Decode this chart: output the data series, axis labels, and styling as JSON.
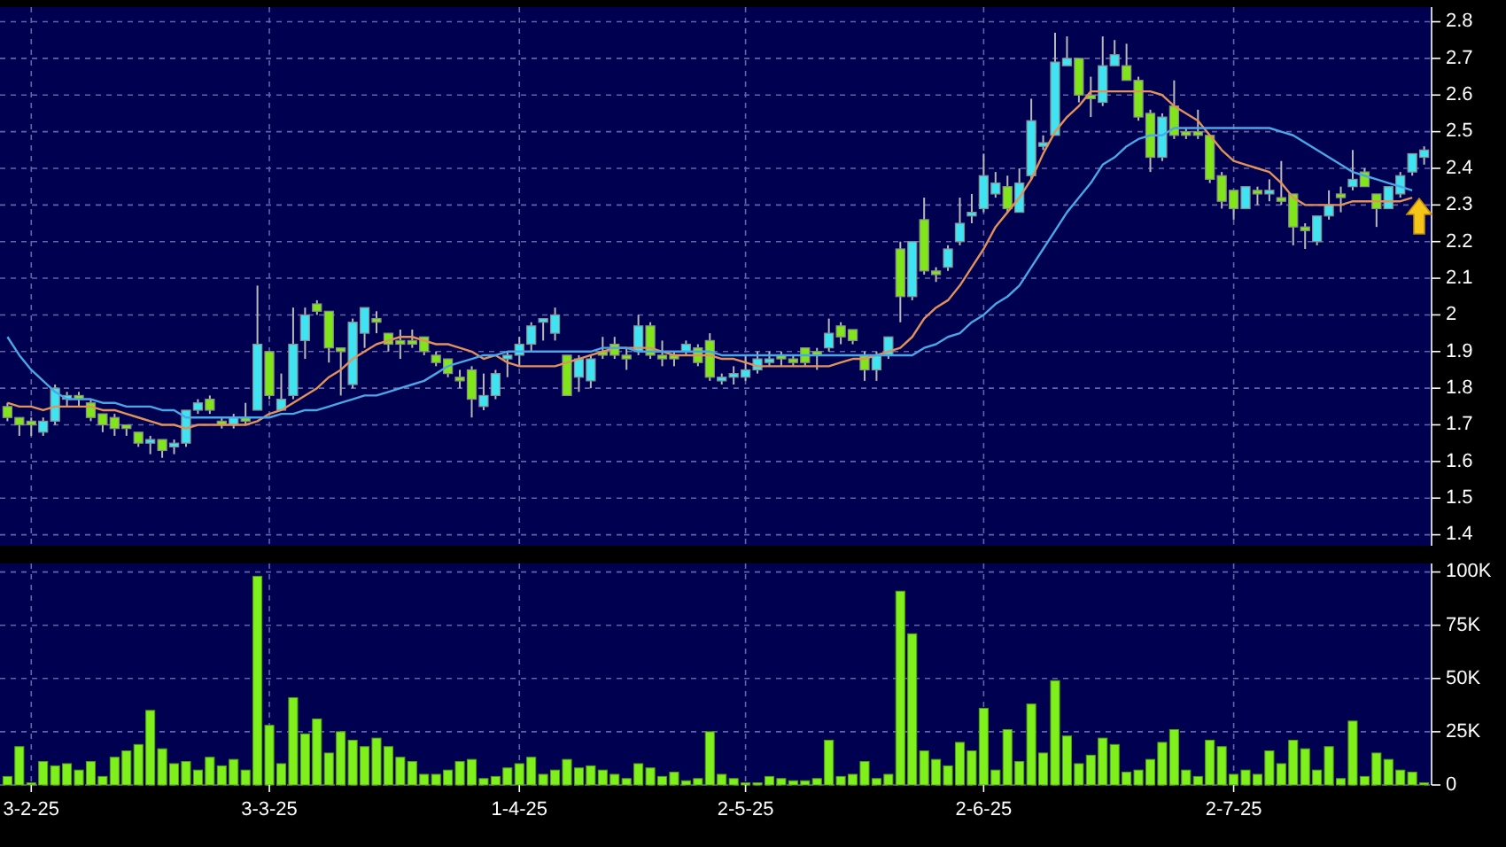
{
  "chart_data": [
    {
      "type": "candlestick",
      "colors": [
        "#80e61a",
        "#80e61a",
        "#80e61a",
        "#3fe3f2",
        "#3fe3f2",
        "#3fe3f2",
        "#80e61a",
        "#80e61a",
        "#80e61a",
        "#80e61a",
        "#80e61a",
        "#80e61a",
        "#3fe3f2",
        "#80e61a",
        "#3fe3f2",
        "#3fe3f2",
        "#3fe3f2",
        "#80e61a",
        "#80e61a",
        "#3fe3f2",
        "#80e61a",
        "#3fe3f2",
        "#80e61a",
        "#3fe3f2",
        "#3fe3f2",
        "#3fe3f2",
        "#80e61a",
        "#80e61a",
        "#80e61a",
        "#3fe3f2",
        "#3fe3f2",
        "#80e61a",
        "#80e61a",
        "#80e61a",
        "#80e61a",
        "#80e61a",
        "#80e61a",
        "#80e61a",
        "#80e61a",
        "#80e61a",
        "#3fe3f2",
        "#3fe3f2",
        "#3fe3f2",
        "#3fe3f2",
        "#3fe3f2",
        "#3fe3f2",
        "#3fe3f2",
        "#80e61a",
        "#3fe3f2",
        "#3fe3f2",
        "#80e61a",
        "#80e61a",
        "#80e61a",
        "#3fe3f2",
        "#80e61a",
        "#80e61a",
        "#80e61a",
        "#3fe3f2",
        "#80e61a",
        "#80e61a",
        "#3fe3f2",
        "#3fe3f2",
        "#3fe3f2",
        "#3fe3f2",
        "#3fe3f2",
        "#80e61a",
        "#80e61a",
        "#80e61a",
        "#80e61a",
        "#3fe3f2",
        "#80e61a",
        "#80e61a",
        "#80e61a",
        "#3fe3f2",
        "#3fe3f2",
        "#80e61a",
        "#3fe3f2",
        "#80e61a",
        "#80e61a",
        "#3fe3f2",
        "#3fe3f2",
        "#3fe3f2",
        "#3fe3f2",
        "#3fe3f2",
        "#80e61a",
        "#3fe3f2",
        "#3fe3f2",
        "#3fe3f2",
        "#3fe3f2",
        "#3fe3f2",
        "#80e61a",
        "#80e61a",
        "#3fe3f2",
        "#3fe3f2",
        "#80e61a",
        "#80e61a",
        "#80e61a",
        "#3fe3f2",
        "#80e61a",
        "#80e61a",
        "#80e61a",
        "#80e61a",
        "#80e61a",
        "#80e61a",
        "#3fe3f2",
        "#80e61a",
        "#3fe3f2",
        "#80e61a",
        "#80e61a",
        "#80e61a",
        "#3fe3f2",
        "#3fe3f2",
        "#80e61a",
        "#3fe3f2",
        "#80e61a",
        "#80e61a",
        "#3fe3f2",
        "#3fe3f2",
        "#3fe3f2",
        "#3fe3f2"
      ],
      "ohlc": [
        [
          1.75,
          1.76,
          1.71,
          1.72
        ],
        [
          1.72,
          1.72,
          1.67,
          1.7
        ],
        [
          1.71,
          1.72,
          1.67,
          1.7
        ],
        [
          1.68,
          1.72,
          1.67,
          1.71
        ],
        [
          1.71,
          1.81,
          1.7,
          1.8
        ],
        [
          1.77,
          1.79,
          1.75,
          1.78
        ],
        [
          1.78,
          1.79,
          1.75,
          1.77
        ],
        [
          1.76,
          1.77,
          1.71,
          1.72
        ],
        [
          1.73,
          1.73,
          1.68,
          1.7
        ],
        [
          1.72,
          1.73,
          1.67,
          1.69
        ],
        [
          1.7,
          1.7,
          1.67,
          1.69
        ],
        [
          1.68,
          1.68,
          1.64,
          1.65
        ],
        [
          1.65,
          1.67,
          1.62,
          1.66
        ],
        [
          1.66,
          1.66,
          1.61,
          1.63
        ],
        [
          1.64,
          1.66,
          1.62,
          1.65
        ],
        [
          1.65,
          1.74,
          1.64,
          1.74
        ],
        [
          1.74,
          1.77,
          1.73,
          1.76
        ],
        [
          1.77,
          1.78,
          1.73,
          1.74
        ],
        [
          1.71,
          1.72,
          1.69,
          1.7
        ],
        [
          1.7,
          1.73,
          1.69,
          1.72
        ],
        [
          1.72,
          1.76,
          1.7,
          1.71
        ],
        [
          1.74,
          2.08,
          1.74,
          1.92
        ],
        [
          1.9,
          1.9,
          1.77,
          1.78
        ],
        [
          1.74,
          1.84,
          1.74,
          1.77
        ],
        [
          1.78,
          2.02,
          1.77,
          1.92
        ],
        [
          1.93,
          2.02,
          1.88,
          2.0
        ],
        [
          2.03,
          2.04,
          2.0,
          2.01
        ],
        [
          2.01,
          2.01,
          1.87,
          1.91
        ],
        [
          1.91,
          1.91,
          1.78,
          1.9
        ],
        [
          1.81,
          1.99,
          1.8,
          1.98
        ],
        [
          1.95,
          2.02,
          1.91,
          2.02
        ],
        [
          1.99,
          2.01,
          1.95,
          1.98
        ],
        [
          1.95,
          1.95,
          1.9,
          1.92
        ],
        [
          1.93,
          1.96,
          1.88,
          1.92
        ],
        [
          1.93,
          1.96,
          1.91,
          1.92
        ],
        [
          1.94,
          1.94,
          1.89,
          1.9
        ],
        [
          1.89,
          1.9,
          1.86,
          1.87
        ],
        [
          1.88,
          1.88,
          1.83,
          1.84
        ],
        [
          1.83,
          1.85,
          1.8,
          1.82
        ],
        [
          1.85,
          1.86,
          1.72,
          1.77
        ],
        [
          1.75,
          1.84,
          1.74,
          1.78
        ],
        [
          1.78,
          1.85,
          1.77,
          1.84
        ],
        [
          1.88,
          1.9,
          1.83,
          1.89
        ],
        [
          1.89,
          1.94,
          1.86,
          1.92
        ],
        [
          1.92,
          1.98,
          1.9,
          1.97
        ],
        [
          1.98,
          1.99,
          1.93,
          1.99
        ],
        [
          1.95,
          2.02,
          1.93,
          2.0
        ],
        [
          1.89,
          1.89,
          1.78,
          1.78
        ],
        [
          1.83,
          1.89,
          1.79,
          1.88
        ],
        [
          1.82,
          1.89,
          1.8,
          1.88
        ],
        [
          1.9,
          1.94,
          1.88,
          1.89
        ],
        [
          1.92,
          1.94,
          1.88,
          1.89
        ],
        [
          1.89,
          1.91,
          1.85,
          1.88
        ],
        [
          1.9,
          2.0,
          1.89,
          1.97
        ],
        [
          1.97,
          1.98,
          1.88,
          1.89
        ],
        [
          1.89,
          1.93,
          1.86,
          1.88
        ],
        [
          1.89,
          1.9,
          1.86,
          1.88
        ],
        [
          1.9,
          1.93,
          1.89,
          1.92
        ],
        [
          1.91,
          1.92,
          1.86,
          1.87
        ],
        [
          1.93,
          1.95,
          1.82,
          1.83
        ],
        [
          1.82,
          1.84,
          1.81,
          1.83
        ],
        [
          1.83,
          1.86,
          1.81,
          1.84
        ],
        [
          1.83,
          1.89,
          1.82,
          1.85
        ],
        [
          1.85,
          1.9,
          1.84,
          1.88
        ],
        [
          1.87,
          1.9,
          1.86,
          1.88
        ],
        [
          1.89,
          1.9,
          1.86,
          1.88
        ],
        [
          1.88,
          1.89,
          1.86,
          1.87
        ],
        [
          1.91,
          1.91,
          1.86,
          1.87
        ],
        [
          1.9,
          1.91,
          1.85,
          1.89
        ],
        [
          1.91,
          1.99,
          1.9,
          1.95
        ],
        [
          1.97,
          1.98,
          1.92,
          1.94
        ],
        [
          1.96,
          1.96,
          1.92,
          1.93
        ],
        [
          1.89,
          1.9,
          1.82,
          1.85
        ],
        [
          1.85,
          1.9,
          1.82,
          1.89
        ],
        [
          1.89,
          1.94,
          1.88,
          1.94
        ],
        [
          2.18,
          2.2,
          1.98,
          2.05
        ],
        [
          2.05,
          2.2,
          2.04,
          2.2
        ],
        [
          2.26,
          2.32,
          2.11,
          2.12
        ],
        [
          2.12,
          2.13,
          2.09,
          2.11
        ],
        [
          2.13,
          2.19,
          2.12,
          2.18
        ],
        [
          2.2,
          2.32,
          2.19,
          2.25
        ],
        [
          2.27,
          2.33,
          2.25,
          2.28
        ],
        [
          2.29,
          2.44,
          2.28,
          2.38
        ],
        [
          2.33,
          2.39,
          2.32,
          2.36
        ],
        [
          2.35,
          2.38,
          2.28,
          2.29
        ],
        [
          2.28,
          2.4,
          2.28,
          2.36
        ],
        [
          2.38,
          2.59,
          2.37,
          2.53
        ],
        [
          2.46,
          2.49,
          2.45,
          2.47
        ],
        [
          2.49,
          2.77,
          2.49,
          2.69
        ],
        [
          2.68,
          2.76,
          2.68,
          2.7
        ],
        [
          2.7,
          2.7,
          2.58,
          2.6
        ],
        [
          2.6,
          2.65,
          2.54,
          2.59
        ],
        [
          2.58,
          2.76,
          2.57,
          2.68
        ],
        [
          2.68,
          2.75,
          2.68,
          2.71
        ],
        [
          2.68,
          2.74,
          2.64,
          2.64
        ],
        [
          2.64,
          2.65,
          2.53,
          2.54
        ],
        [
          2.55,
          2.56,
          2.39,
          2.43
        ],
        [
          2.43,
          2.55,
          2.42,
          2.54
        ],
        [
          2.57,
          2.64,
          2.48,
          2.49
        ],
        [
          2.5,
          2.51,
          2.48,
          2.49
        ],
        [
          2.5,
          2.56,
          2.48,
          2.49
        ],
        [
          2.49,
          2.49,
          2.36,
          2.37
        ],
        [
          2.38,
          2.39,
          2.29,
          2.31
        ],
        [
          2.34,
          2.34,
          2.26,
          2.29
        ],
        [
          2.29,
          2.35,
          2.29,
          2.35
        ],
        [
          2.34,
          2.35,
          2.3,
          2.33
        ],
        [
          2.33,
          2.37,
          2.31,
          2.34
        ],
        [
          2.32,
          2.42,
          2.3,
          2.31
        ],
        [
          2.33,
          2.33,
          2.19,
          2.24
        ],
        [
          2.24,
          2.25,
          2.18,
          2.23
        ],
        [
          2.2,
          2.27,
          2.19,
          2.27
        ],
        [
          2.27,
          2.34,
          2.26,
          2.3
        ],
        [
          2.33,
          2.35,
          2.28,
          2.32
        ],
        [
          2.35,
          2.45,
          2.34,
          2.37
        ],
        [
          2.39,
          2.4,
          2.35,
          2.35
        ],
        [
          2.33,
          2.33,
          2.24,
          2.29
        ],
        [
          2.29,
          2.35,
          2.29,
          2.35
        ],
        [
          2.33,
          2.39,
          2.32,
          2.38
        ],
        [
          2.39,
          2.44,
          2.38,
          2.44
        ],
        [
          2.43,
          2.46,
          2.41,
          2.45
        ]
      ],
      "series": [
        {
          "type": "line",
          "color": "#e0925a",
          "values": [
            1.76,
            1.75,
            1.75,
            1.74,
            1.75,
            1.75,
            1.75,
            1.75,
            1.74,
            1.74,
            1.73,
            1.72,
            1.71,
            1.7,
            1.7,
            1.69,
            1.7,
            1.7,
            1.7,
            1.7,
            1.7,
            1.71,
            1.73,
            1.74,
            1.76,
            1.78,
            1.8,
            1.83,
            1.85,
            1.88,
            1.9,
            1.92,
            1.93,
            1.94,
            1.94,
            1.93,
            1.92,
            1.92,
            1.91,
            1.9,
            1.88,
            1.89,
            1.87,
            1.86,
            1.86,
            1.86,
            1.86,
            1.87,
            1.88,
            1.89,
            1.9,
            1.91,
            1.91,
            1.91,
            1.91,
            1.9,
            1.89,
            1.89,
            1.89,
            1.89,
            1.88,
            1.88,
            1.87,
            1.86,
            1.86,
            1.86,
            1.86,
            1.86,
            1.86,
            1.86,
            1.87,
            1.88,
            1.88,
            1.89,
            1.9,
            1.91,
            1.94,
            1.99,
            2.02,
            2.04,
            2.08,
            2.13,
            2.18,
            2.24,
            2.28,
            2.32,
            2.37,
            2.44,
            2.5,
            2.54,
            2.57,
            2.61,
            2.61,
            2.61,
            2.61,
            2.61,
            2.61,
            2.6,
            2.57,
            2.55,
            2.53,
            2.49,
            2.45,
            2.42,
            2.41,
            2.4,
            2.39,
            2.36,
            2.32,
            2.3,
            2.3,
            2.3,
            2.3,
            2.31,
            2.31,
            2.31,
            2.31,
            2.31,
            2.32,
            null
          ]
        },
        {
          "type": "line",
          "color": "#4aa6e6",
          "values": [
            1.94,
            1.89,
            1.85,
            1.82,
            1.79,
            1.77,
            1.77,
            1.77,
            1.76,
            1.76,
            1.75,
            1.75,
            1.75,
            1.74,
            1.74,
            1.72,
            1.72,
            1.72,
            1.72,
            1.72,
            1.72,
            1.72,
            1.72,
            1.73,
            1.73,
            1.74,
            1.74,
            1.75,
            1.76,
            1.77,
            1.78,
            1.78,
            1.79,
            1.8,
            1.81,
            1.82,
            1.84,
            1.86,
            1.87,
            1.88,
            1.89,
            1.89,
            1.9,
            1.9,
            1.9,
            1.9,
            1.9,
            1.9,
            1.9,
            1.9,
            1.91,
            1.91,
            1.91,
            1.9,
            1.9,
            1.9,
            1.9,
            1.9,
            1.9,
            1.9,
            1.89,
            1.89,
            1.89,
            1.89,
            1.89,
            1.89,
            1.89,
            1.89,
            1.89,
            1.89,
            1.89,
            1.89,
            1.89,
            1.89,
            1.89,
            1.89,
            1.89,
            1.91,
            1.92,
            1.94,
            1.95,
            1.98,
            2.0,
            2.03,
            2.05,
            2.08,
            2.13,
            2.18,
            2.23,
            2.28,
            2.32,
            2.36,
            2.41,
            2.43,
            2.46,
            2.48,
            2.49,
            2.49,
            2.51,
            2.51,
            2.51,
            2.51,
            2.51,
            2.51,
            2.51,
            2.51,
            2.51,
            2.5,
            2.49,
            2.47,
            2.45,
            2.43,
            2.41,
            2.39,
            2.38,
            2.37,
            2.36,
            2.35,
            2.34,
            null
          ]
        }
      ],
      "ylim": [
        1.37,
        2.84
      ],
      "yticks": [
        1.4,
        1.5,
        1.6,
        1.7,
        1.8,
        1.9,
        2,
        2.1,
        2.2,
        2.3,
        2.4,
        2.5,
        2.6,
        2.7,
        2.8
      ],
      "grid": true,
      "tick_labels": "y"
    },
    {
      "type": "bar",
      "categories": [
        null,
        null,
        "3-2-25",
        null,
        null,
        null,
        null,
        null,
        null,
        null,
        null,
        null,
        null,
        null,
        null,
        null,
        null,
        null,
        null,
        null,
        null,
        null,
        "3-3-25",
        null,
        null,
        null,
        null,
        null,
        null,
        null,
        null,
        null,
        null,
        null,
        null,
        null,
        null,
        null,
        null,
        null,
        null,
        null,
        null,
        "1-4-25",
        null,
        null,
        null,
        null,
        null,
        null,
        null,
        null,
        null,
        null,
        null,
        null,
        null,
        null,
        null,
        null,
        null,
        null,
        "2-5-25",
        null,
        null,
        null,
        null,
        null,
        null,
        null,
        null,
        null,
        null,
        null,
        null,
        null,
        null,
        null,
        null,
        null,
        null,
        null,
        "2-6-25",
        null,
        null,
        null,
        null,
        null,
        null,
        null,
        null,
        null,
        null,
        null,
        null,
        null,
        null,
        null,
        null,
        null,
        null,
        null,
        null,
        "2-7-25",
        null,
        null,
        null,
        null,
        null,
        null,
        null,
        null,
        null,
        null,
        null,
        null,
        null,
        null,
        null,
        null
      ],
      "color": "#7ff01c",
      "values": [
        4,
        18,
        1,
        11,
        9,
        10,
        7,
        11,
        4,
        13,
        16,
        19,
        35,
        17,
        10,
        11,
        7,
        13,
        9,
        12,
        7,
        98,
        28,
        10,
        41,
        24,
        31,
        15,
        25,
        21,
        18,
        22,
        18,
        13,
        11,
        5,
        5,
        7,
        11,
        12,
        3,
        4,
        8,
        10,
        13,
        5,
        7,
        12,
        8,
        9,
        7,
        5,
        3,
        10,
        8,
        4,
        6,
        2,
        3,
        25,
        5,
        3,
        1,
        1,
        4,
        3,
        2,
        2,
        3,
        21,
        4,
        5,
        11,
        3,
        5,
        91,
        71,
        16,
        12,
        9,
        20,
        16,
        36,
        7,
        26,
        11,
        38,
        15,
        49,
        23,
        10,
        14,
        22,
        19,
        6,
        7,
        12,
        20,
        26,
        7,
        4,
        21,
        18,
        5,
        7,
        5,
        16,
        10,
        21,
        17,
        7,
        18,
        3,
        30,
        4,
        15,
        12,
        7,
        6,
        1
      ],
      "ylim": [
        0,
        104
      ],
      "yticks": [
        0,
        {
          "value": 25,
          "label": "25K"
        },
        {
          "value": 50,
          "label": "50K"
        },
        {
          "value": 75,
          "label": "75K"
        },
        {
          "value": 100,
          "label": "100K"
        }
      ],
      "grid": true
    }
  ]
}
